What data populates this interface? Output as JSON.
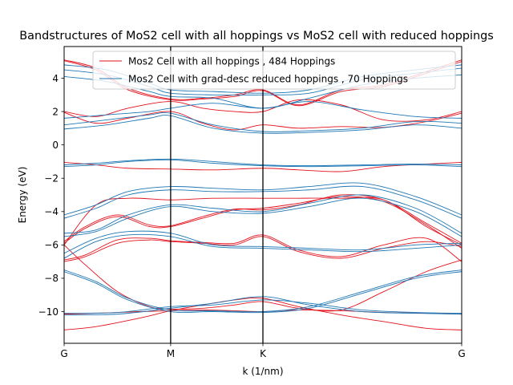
{
  "chart_data": {
    "type": "line",
    "title": "Bandstructures of MoS2 cell with all hoppings vs MoS2 cell with reduced hoppings",
    "xlabel": "k (1/nm)",
    "ylabel": "Energy (eV)",
    "xlim": [
      0,
      3.732
    ],
    "ylim": [
      -11.9,
      5.9
    ],
    "xticks": [
      {
        "label": "G",
        "value": 0
      },
      {
        "label": "M",
        "value": 1
      },
      {
        "label": "K",
        "value": 1.866
      },
      {
        "label": "G",
        "value": 3.732
      }
    ],
    "yticks": [
      -10,
      -8,
      -6,
      -4,
      -2,
      0,
      2,
      4
    ],
    "legend_position": "upper-center",
    "series": [
      {
        "name": "Mos2 Cell with all hoppings , 484 Hoppings",
        "color": "#e3121d",
        "bands": [
          {
            "x": [
              0,
              0.3,
              0.7,
              1.0,
              1.3,
              1.6,
              1.866,
              2.2,
              2.6,
              3.0,
              3.4,
              3.732
            ],
            "y": [
              -11.1,
              -10.9,
              -10.4,
              -9.95,
              -9.6,
              -9.3,
              -9.2,
              -9.7,
              -10.2,
              -10.6,
              -11.0,
              -11.1
            ]
          },
          {
            "x": [
              0,
              0.3,
              0.7,
              1.0,
              1.3,
              1.6,
              1.866,
              2.2,
              2.6,
              3.0,
              3.4,
              3.732
            ],
            "y": [
              -10.15,
              -10.1,
              -10.0,
              -9.95,
              -9.9,
              -9.95,
              -10.0,
              -9.9,
              -9.95,
              -10.05,
              -10.1,
              -10.15
            ]
          },
          {
            "x": [
              0,
              0.2,
              0.5,
              0.8,
              1.0,
              1.3,
              1.6,
              1.866,
              2.2,
              2.6,
              3.0,
              3.4,
              3.732
            ],
            "y": [
              -6.0,
              -7.2,
              -8.8,
              -9.7,
              -9.85,
              -9.8,
              -9.6,
              -9.4,
              -9.8,
              -9.9,
              -8.8,
              -7.6,
              -6.9
            ]
          },
          {
            "x": [
              0,
              0.2,
              0.5,
              0.8,
              1.0,
              1.3,
              1.6,
              1.866,
              2.2,
              2.6,
              3.0,
              3.4,
              3.732
            ],
            "y": [
              -7.0,
              -6.7,
              -5.9,
              -5.7,
              -5.8,
              -5.9,
              -6.0,
              -5.5,
              -6.4,
              -6.8,
              -6.2,
              -5.8,
              -6.1
            ]
          },
          {
            "x": [
              0,
              0.2,
              0.5,
              0.8,
              1.0,
              1.3,
              1.6,
              1.866,
              2.2,
              2.6,
              3.0,
              3.4,
              3.732
            ],
            "y": [
              -6.9,
              -6.6,
              -5.7,
              -5.6,
              -5.75,
              -5.85,
              -5.9,
              -5.4,
              -6.3,
              -6.7,
              -6.0,
              -5.6,
              -7.0
            ]
          },
          {
            "x": [
              0,
              0.2,
              0.5,
              0.8,
              1.0,
              1.3,
              1.6,
              1.866,
              2.2,
              2.6,
              3.0,
              3.4,
              3.732
            ],
            "y": [
              -5.9,
              -5.0,
              -4.3,
              -4.9,
              -4.9,
              -4.4,
              -3.9,
              -3.8,
              -3.5,
              -3.1,
              -3.4,
              -4.8,
              -6.2
            ]
          },
          {
            "x": [
              0,
              0.2,
              0.5,
              0.8,
              1.0,
              1.3,
              1.6,
              1.866,
              2.2,
              2.6,
              3.0,
              3.4,
              3.732
            ],
            "y": [
              -5.8,
              -4.9,
              -4.2,
              -4.8,
              -4.85,
              -4.3,
              -3.85,
              -3.9,
              -3.6,
              -3.0,
              -3.3,
              -4.7,
              -5.9
            ]
          },
          {
            "x": [
              0,
              0.3,
              0.6,
              1.0,
              1.4,
              1.866,
              2.2,
              2.6,
              3.0,
              3.4,
              3.732
            ],
            "y": [
              -6.0,
              -3.6,
              -3.2,
              -3.3,
              -3.2,
              -3.2,
              -3.2,
              -3.2,
              -3.3,
              -4.9,
              -6.0
            ]
          },
          {
            "x": [
              0,
              0.3,
              0.6,
              1.0,
              1.4,
              1.866,
              2.2,
              2.6,
              3.0,
              3.4,
              3.732
            ],
            "y": [
              -1.05,
              -1.2,
              -1.4,
              -1.45,
              -1.5,
              -1.4,
              -1.5,
              -1.6,
              -1.3,
              -1.15,
              -1.05
            ]
          },
          {
            "x": [
              0,
              0.3,
              0.6,
              1.0,
              1.3,
              1.6,
              1.866,
              2.2,
              2.6,
              3.0,
              3.4,
              3.732
            ],
            "y": [
              1.95,
              1.3,
              1.6,
              2.0,
              1.3,
              0.9,
              1.2,
              1.0,
              1.1,
              1.05,
              1.4,
              1.9
            ]
          },
          {
            "x": [
              0,
              0.3,
              0.6,
              1.0,
              1.3,
              1.6,
              1.866,
              2.2,
              2.6,
              3.0,
              3.4,
              3.732
            ],
            "y": [
              2.0,
              1.7,
              2.2,
              2.6,
              2.2,
              2.0,
              2.0,
              2.7,
              2.4,
              1.5,
              1.5,
              2.0
            ]
          },
          {
            "x": [
              0,
              0.3,
              0.6,
              1.0,
              1.3,
              1.6,
              1.866,
              2.2,
              2.6,
              3.0,
              3.4,
              3.732
            ],
            "y": [
              5.1,
              4.6,
              3.4,
              2.75,
              2.8,
              3.0,
              3.3,
              2.4,
              3.3,
              3.6,
              4.4,
              5.1
            ]
          },
          {
            "x": [
              0,
              0.3,
              0.6,
              1.0,
              1.3,
              1.6,
              1.866,
              2.2,
              2.6,
              3.0,
              3.4,
              3.732
            ],
            "y": [
              5.05,
              4.5,
              3.3,
              2.7,
              2.75,
              2.9,
              3.25,
              2.35,
              3.2,
              3.5,
              4.3,
              5.0
            ]
          }
        ]
      },
      {
        "name": "Mos2 Cell with grad-desc reduced hoppings , 70 Hoppings",
        "color": "#1f77b4",
        "bands": [
          {
            "x": [
              0,
              0.5,
              1.0,
              1.4,
              1.866,
              2.3,
              2.8,
              3.3,
              3.732
            ],
            "y": [
              -10.2,
              -10.15,
              -9.8,
              -9.5,
              -9.1,
              -9.6,
              -10.0,
              -10.1,
              -10.15
            ]
          },
          {
            "x": [
              0,
              0.5,
              1.0,
              1.4,
              1.866,
              2.3,
              2.8,
              3.3,
              3.732
            ],
            "y": [
              -10.1,
              -10.05,
              -9.7,
              -9.6,
              -9.3,
              -9.5,
              -9.9,
              -10.05,
              -10.1
            ]
          },
          {
            "x": [
              0,
              0.3,
              0.6,
              1.0,
              1.4,
              1.866,
              2.3,
              2.8,
              3.3,
              3.732
            ],
            "y": [
              -7.5,
              -8.2,
              -9.2,
              -9.9,
              -9.95,
              -10.0,
              -9.7,
              -8.8,
              -7.9,
              -7.5
            ]
          },
          {
            "x": [
              0,
              0.3,
              0.6,
              1.0,
              1.4,
              1.866,
              2.3,
              2.8,
              3.3,
              3.732
            ],
            "y": [
              -7.6,
              -8.3,
              -9.3,
              -10.0,
              -10.0,
              -10.05,
              -9.8,
              -8.9,
              -8.0,
              -7.6
            ]
          },
          {
            "x": [
              0,
              0.3,
              0.6,
              1.0,
              1.4,
              1.866,
              2.3,
              2.8,
              3.3,
              3.732
            ],
            "y": [
              -6.5,
              -5.6,
              -5.2,
              -5.3,
              -6.0,
              -6.1,
              -6.2,
              -6.3,
              -6.0,
              -5.9
            ]
          },
          {
            "x": [
              0,
              0.3,
              0.6,
              1.0,
              1.4,
              1.866,
              2.3,
              2.8,
              3.3,
              3.732
            ],
            "y": [
              -6.8,
              -5.8,
              -5.4,
              -5.5,
              -6.1,
              -6.2,
              -6.3,
              -6.4,
              -6.2,
              -6.0
            ]
          },
          {
            "x": [
              0,
              0.3,
              0.6,
              1.0,
              1.4,
              1.866,
              2.3,
              2.8,
              3.3,
              3.732
            ],
            "y": [
              -5.3,
              -5.1,
              -4.2,
              -3.6,
              -3.8,
              -4.0,
              -3.5,
              -3.0,
              -3.8,
              -5.3
            ]
          },
          {
            "x": [
              0,
              0.3,
              0.6,
              1.0,
              1.4,
              1.866,
              2.3,
              2.8,
              3.3,
              3.732
            ],
            "y": [
              -5.5,
              -5.2,
              -4.4,
              -3.7,
              -4.0,
              -4.1,
              -3.7,
              -3.2,
              -4.0,
              -5.5
            ]
          },
          {
            "x": [
              0,
              0.3,
              0.6,
              1.0,
              1.4,
              1.866,
              2.3,
              2.8,
              3.3,
              3.732
            ],
            "y": [
              -4.2,
              -3.6,
              -2.8,
              -2.5,
              -2.6,
              -2.7,
              -2.5,
              -2.3,
              -3.1,
              -4.2
            ]
          },
          {
            "x": [
              0,
              0.3,
              0.6,
              1.0,
              1.4,
              1.866,
              2.3,
              2.8,
              3.3,
              3.732
            ],
            "y": [
              -4.4,
              -3.8,
              -3.0,
              -2.7,
              -2.8,
              -2.8,
              -2.7,
              -2.5,
              -3.3,
              -4.4
            ]
          },
          {
            "x": [
              0,
              0.3,
              0.6,
              1.0,
              1.4,
              1.866,
              2.3,
              2.8,
              3.3,
              3.732
            ],
            "y": [
              -1.2,
              -1.1,
              -0.95,
              -0.85,
              -1.0,
              -1.2,
              -1.25,
              -1.2,
              -1.15,
              -1.2
            ]
          },
          {
            "x": [
              0,
              0.3,
              0.6,
              1.0,
              1.4,
              1.866,
              2.3,
              2.8,
              3.3,
              3.732
            ],
            "y": [
              -1.3,
              -1.2,
              -1.0,
              -0.9,
              -1.1,
              -1.25,
              -1.3,
              -1.25,
              -1.2,
              -1.3
            ]
          },
          {
            "x": [
              0,
              0.4,
              0.8,
              1.0,
              1.4,
              1.866,
              2.3,
              2.8,
              3.3,
              3.732
            ],
            "y": [
              0.95,
              1.2,
              1.6,
              1.75,
              1.0,
              0.7,
              0.75,
              0.9,
              1.2,
              1.0
            ]
          },
          {
            "x": [
              0,
              0.4,
              0.8,
              1.0,
              1.4,
              1.866,
              2.3,
              2.8,
              3.3,
              3.732
            ],
            "y": [
              1.2,
              1.5,
              1.8,
              1.9,
              1.2,
              0.8,
              0.85,
              1.0,
              1.4,
              1.3
            ]
          },
          {
            "x": [
              0,
              0.4,
              0.8,
              1.0,
              1.4,
              1.866,
              2.3,
              2.8,
              3.3,
              3.732
            ],
            "y": [
              1.6,
              1.8,
              2.0,
              2.2,
              2.5,
              2.2,
              2.6,
              2.1,
              1.7,
              1.6
            ]
          },
          {
            "x": [
              0,
              0.4,
              0.8,
              1.0,
              1.4,
              1.866,
              2.3,
              2.8,
              3.3,
              3.732
            ],
            "y": [
              4.1,
              3.8,
              3.2,
              2.9,
              2.8,
              2.2,
              2.8,
              3.6,
              4.0,
              4.2
            ]
          },
          {
            "x": [
              0,
              0.4,
              0.8,
              1.0,
              1.4,
              1.866,
              2.3,
              2.8,
              3.3,
              3.732
            ],
            "y": [
              4.5,
              4.2,
              3.5,
              3.1,
              3.0,
              3.0,
              3.1,
              3.9,
              4.3,
              4.6
            ]
          },
          {
            "x": [
              0,
              0.4,
              0.8,
              1.0,
              1.4,
              1.866,
              2.3,
              2.8,
              3.3,
              3.732
            ],
            "y": [
              4.8,
              4.5,
              3.7,
              3.3,
              3.2,
              3.1,
              3.3,
              4.1,
              4.5,
              4.8
            ]
          }
        ]
      }
    ]
  }
}
